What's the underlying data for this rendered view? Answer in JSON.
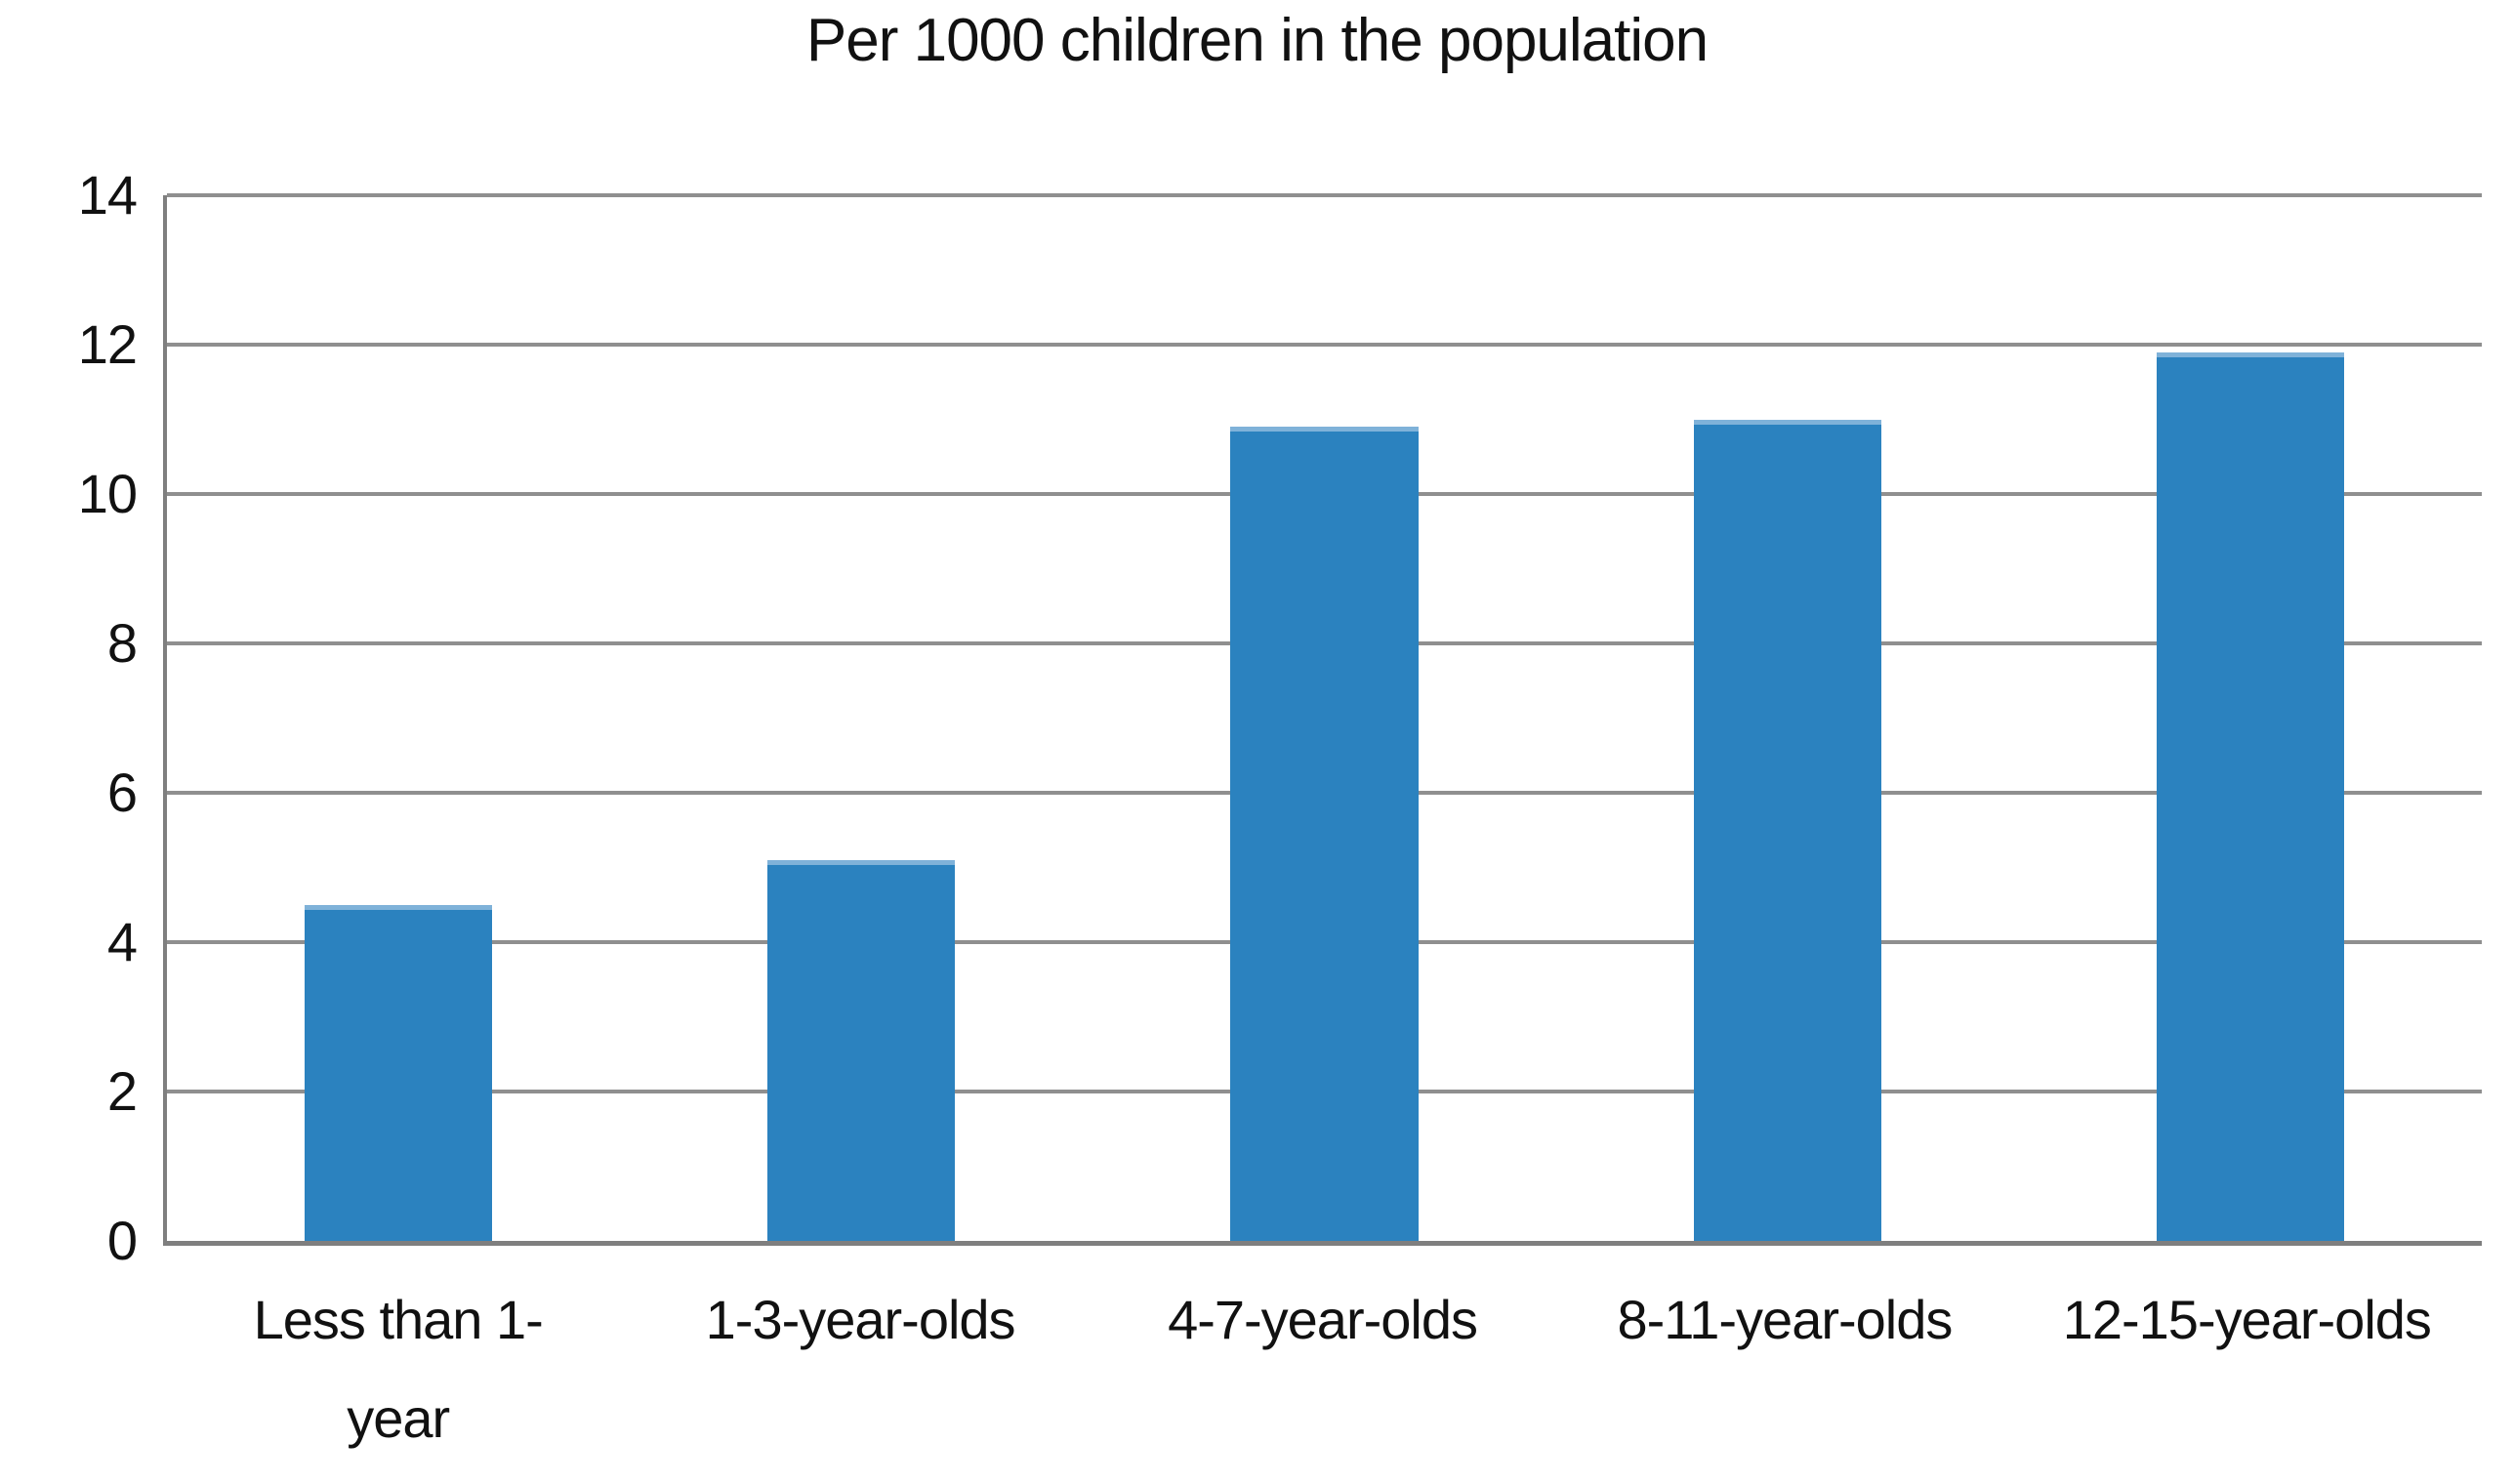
{
  "chart_data": {
    "type": "bar",
    "title": "Per 1000 children in the population",
    "categories": [
      "Less than 1-\nyear",
      "1-3-year-olds",
      "4-7-year-olds",
      "8-11-year-olds",
      "12-15-year-olds"
    ],
    "values": [
      4.5,
      5.1,
      10.9,
      11.0,
      11.9
    ],
    "xlabel": "",
    "ylabel": "",
    "ylim": [
      0,
      14
    ],
    "yticks": [
      0,
      2,
      4,
      6,
      8,
      10,
      12,
      14
    ],
    "grid": true,
    "legend": false,
    "bar_color": "#2B82BF",
    "bar_top_highlight": "#7FB2D9",
    "gridline_color": "#8F8F8F",
    "axis_color": "#7F7F7F",
    "text_color": "#111111",
    "background_color": "#FFFFFF"
  }
}
